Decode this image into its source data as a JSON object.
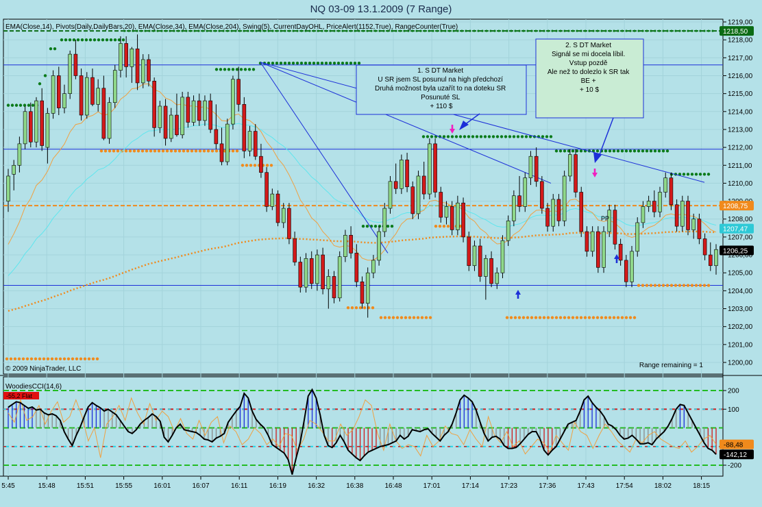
{
  "title": "NQ 03-09  13.1.2009 (7 Range)",
  "indicator_label": "EMA(Close,14), Pivots(Daily,DailyBars,20), EMA(Close,34), EMA(Close,204), Swing(5), CurrentDayOHL, PriceAlert(1152,True), RangeCounter(True)",
  "copyright": "© 2009 NinjaTrader, LLC",
  "range_remaining": "Range remaining = 1",
  "pp_label": "PP",
  "annotations": [
    {
      "id": "note1",
      "lines": [
        "1. S DT Market",
        "U SR jsem SL posunul na high předchozí",
        "Druhá možnost byla uzařít to na doteku SR",
        "Posunuté SL",
        "+ 110 $"
      ]
    },
    {
      "id": "note2",
      "lines": [
        "2. S DT Market",
        "Signál se mi docela líbil.",
        "Vstup pozdě",
        "Ale než to dolezlo k SR tak",
        "BE +",
        "+ 10 $"
      ]
    }
  ],
  "price_badges": [
    {
      "label": "1218,50",
      "value": 1218.5,
      "color": "#0b6b14"
    },
    {
      "label": "1208,75",
      "value": 1208.75,
      "color": "#f08a1c"
    },
    {
      "label": "1207,47",
      "value": 1207.47,
      "color": "#2ec9d6"
    },
    {
      "label": "1206,25",
      "value": 1206.25,
      "color": "#000000"
    }
  ],
  "cci_label": "WoodiesCCI(14,6)",
  "cci_flat_badge": "-55,2 Flat",
  "cci_badges": [
    {
      "label": "-88,48",
      "value": -88.48,
      "color": "#f08a1c"
    },
    {
      "label": "-142,12",
      "value": -142.12,
      "color": "#000000"
    }
  ],
  "chart_data": {
    "type": "candlestick",
    "price_axis": {
      "min": 1199.5,
      "max": 1219.25,
      "ticks": [
        "1219,00",
        "1218,00",
        "1217,00",
        "1216,00",
        "1215,00",
        "1214,00",
        "1213,00",
        "1212,00",
        "1211,00",
        "1210,00",
        "1209,00",
        "1208,00",
        "1207,00",
        "1206,00",
        "1205,00",
        "1204,00",
        "1203,00",
        "1202,00",
        "1201,00",
        "1200,00"
      ]
    },
    "cci_axis": {
      "min": -250,
      "max": 250,
      "ticks": [
        200,
        100,
        -200
      ]
    },
    "time_labels": [
      "5:45",
      "15:48",
      "15:51",
      "15:55",
      "16:01",
      "16:07",
      "16:11",
      "16:19",
      "16:32",
      "16:38",
      "16:48",
      "17:01",
      "17:14",
      "17:23",
      "17:36",
      "17:43",
      "17:54",
      "18:02",
      "18:15"
    ],
    "horizontal_lines": [
      {
        "value": 1216.6,
        "color": "#1c2fd8"
      },
      {
        "value": 1211.9,
        "color": "#1c2fd8"
      },
      {
        "value": 1204.3,
        "color": "#1c2fd8"
      },
      {
        "value": 1208.75,
        "color": "#f08a1c",
        "dashed": true
      },
      {
        "value": 1218.5,
        "color": "#0b6b14",
        "dashed": true
      }
    ],
    "candles": [
      {
        "o": 1209.0,
        "h": 1210.8,
        "l": 1208.4,
        "c": 1210.4
      },
      {
        "o": 1210.5,
        "h": 1211.3,
        "l": 1209.6,
        "c": 1211.0
      },
      {
        "o": 1211.0,
        "h": 1212.6,
        "l": 1210.6,
        "c": 1212.2
      },
      {
        "o": 1212.2,
        "h": 1214.3,
        "l": 1211.9,
        "c": 1214.0
      },
      {
        "o": 1214.0,
        "h": 1214.5,
        "l": 1212.0,
        "c": 1212.3
      },
      {
        "o": 1212.3,
        "h": 1214.8,
        "l": 1212.0,
        "c": 1214.6
      },
      {
        "o": 1214.6,
        "h": 1215.3,
        "l": 1211.8,
        "c": 1212.1
      },
      {
        "o": 1212.0,
        "h": 1214.2,
        "l": 1211.1,
        "c": 1213.9
      },
      {
        "o": 1213.9,
        "h": 1216.3,
        "l": 1213.6,
        "c": 1216.0
      },
      {
        "o": 1216.0,
        "h": 1216.5,
        "l": 1213.8,
        "c": 1214.2
      },
      {
        "o": 1214.2,
        "h": 1215.5,
        "l": 1213.9,
        "c": 1215.0
      },
      {
        "o": 1215.0,
        "h": 1217.4,
        "l": 1214.7,
        "c": 1217.2
      },
      {
        "o": 1217.2,
        "h": 1218.0,
        "l": 1215.8,
        "c": 1216.0
      },
      {
        "o": 1216.0,
        "h": 1216.4,
        "l": 1213.5,
        "c": 1213.8
      },
      {
        "o": 1213.8,
        "h": 1216.2,
        "l": 1213.6,
        "c": 1215.9
      },
      {
        "o": 1215.9,
        "h": 1216.4,
        "l": 1214.3,
        "c": 1214.4
      },
      {
        "o": 1214.4,
        "h": 1215.8,
        "l": 1214.0,
        "c": 1215.3
      },
      {
        "o": 1215.3,
        "h": 1216.0,
        "l": 1212.4,
        "c": 1212.5
      },
      {
        "o": 1212.5,
        "h": 1214.8,
        "l": 1212.2,
        "c": 1214.5
      },
      {
        "o": 1214.5,
        "h": 1216.6,
        "l": 1214.2,
        "c": 1216.3
      },
      {
        "o": 1216.3,
        "h": 1218.2,
        "l": 1215.9,
        "c": 1217.8
      },
      {
        "o": 1217.8,
        "h": 1218.2,
        "l": 1215.9,
        "c": 1216.5
      },
      {
        "o": 1216.5,
        "h": 1217.6,
        "l": 1215.6,
        "c": 1217.5
      },
      {
        "o": 1217.5,
        "h": 1218.3,
        "l": 1215.2,
        "c": 1215.6
      },
      {
        "o": 1215.6,
        "h": 1217.2,
        "l": 1215.3,
        "c": 1216.9
      },
      {
        "o": 1216.9,
        "h": 1217.2,
        "l": 1215.4,
        "c": 1215.7
      },
      {
        "o": 1215.7,
        "h": 1215.9,
        "l": 1212.6,
        "c": 1213.1
      },
      {
        "o": 1213.1,
        "h": 1214.6,
        "l": 1212.8,
        "c": 1214.3
      },
      {
        "o": 1214.3,
        "h": 1214.7,
        "l": 1212.1,
        "c": 1212.5
      },
      {
        "o": 1212.5,
        "h": 1214.2,
        "l": 1212.3,
        "c": 1213.8
      },
      {
        "o": 1213.8,
        "h": 1215.0,
        "l": 1212.6,
        "c": 1212.7
      },
      {
        "o": 1212.7,
        "h": 1215.1,
        "l": 1212.5,
        "c": 1214.8
      },
      {
        "o": 1214.8,
        "h": 1215.1,
        "l": 1213.1,
        "c": 1213.4
      },
      {
        "o": 1213.4,
        "h": 1214.9,
        "l": 1213.2,
        "c": 1214.6
      },
      {
        "o": 1214.6,
        "h": 1215.0,
        "l": 1213.2,
        "c": 1213.5
      },
      {
        "o": 1213.5,
        "h": 1214.9,
        "l": 1213.2,
        "c": 1214.6
      },
      {
        "o": 1214.6,
        "h": 1215.0,
        "l": 1212.8,
        "c": 1213.0
      },
      {
        "o": 1213.0,
        "h": 1214.4,
        "l": 1211.9,
        "c": 1212.2
      },
      {
        "o": 1212.2,
        "h": 1213.1,
        "l": 1211.0,
        "c": 1211.2
      },
      {
        "o": 1211.2,
        "h": 1213.6,
        "l": 1211.0,
        "c": 1213.3
      },
      {
        "o": 1213.3,
        "h": 1216.0,
        "l": 1213.0,
        "c": 1215.8
      },
      {
        "o": 1215.8,
        "h": 1216.5,
        "l": 1214.0,
        "c": 1214.4
      },
      {
        "o": 1214.4,
        "h": 1214.8,
        "l": 1211.4,
        "c": 1211.8
      },
      {
        "o": 1211.8,
        "h": 1213.2,
        "l": 1211.5,
        "c": 1212.9
      },
      {
        "o": 1212.9,
        "h": 1213.3,
        "l": 1211.3,
        "c": 1211.5
      },
      {
        "o": 1211.5,
        "h": 1212.2,
        "l": 1210.3,
        "c": 1210.6
      },
      {
        "o": 1210.6,
        "h": 1210.9,
        "l": 1208.4,
        "c": 1208.7
      },
      {
        "o": 1208.7,
        "h": 1209.7,
        "l": 1208.5,
        "c": 1209.4
      },
      {
        "o": 1209.4,
        "h": 1209.6,
        "l": 1207.6,
        "c": 1207.8
      },
      {
        "o": 1207.8,
        "h": 1208.9,
        "l": 1207.5,
        "c": 1208.6
      },
      {
        "o": 1208.6,
        "h": 1208.9,
        "l": 1206.6,
        "c": 1206.9
      },
      {
        "o": 1206.9,
        "h": 1207.3,
        "l": 1205.4,
        "c": 1205.6
      },
      {
        "o": 1205.6,
        "h": 1205.9,
        "l": 1203.9,
        "c": 1204.2
      },
      {
        "o": 1204.2,
        "h": 1206.1,
        "l": 1203.9,
        "c": 1205.8
      },
      {
        "o": 1205.8,
        "h": 1206.2,
        "l": 1204.1,
        "c": 1204.4
      },
      {
        "o": 1204.4,
        "h": 1206.3,
        "l": 1204.0,
        "c": 1206.0
      },
      {
        "o": 1206.0,
        "h": 1206.4,
        "l": 1203.8,
        "c": 1204.1
      },
      {
        "o": 1204.1,
        "h": 1205.2,
        "l": 1203.0,
        "c": 1204.8
      },
      {
        "o": 1204.8,
        "h": 1205.1,
        "l": 1203.3,
        "c": 1203.6
      },
      {
        "o": 1203.6,
        "h": 1206.2,
        "l": 1203.4,
        "c": 1205.9
      },
      {
        "o": 1205.9,
        "h": 1207.4,
        "l": 1205.6,
        "c": 1207.1
      },
      {
        "o": 1207.1,
        "h": 1207.6,
        "l": 1205.8,
        "c": 1206.1
      },
      {
        "o": 1206.1,
        "h": 1206.6,
        "l": 1204.2,
        "c": 1204.5
      },
      {
        "o": 1204.5,
        "h": 1204.8,
        "l": 1203.0,
        "c": 1203.3
      },
      {
        "o": 1203.3,
        "h": 1205.3,
        "l": 1202.5,
        "c": 1205.0
      },
      {
        "o": 1205.0,
        "h": 1206.0,
        "l": 1204.7,
        "c": 1205.7
      },
      {
        "o": 1205.7,
        "h": 1207.6,
        "l": 1205.4,
        "c": 1207.3
      },
      {
        "o": 1207.3,
        "h": 1208.9,
        "l": 1207.0,
        "c": 1208.6
      },
      {
        "o": 1208.6,
        "h": 1210.4,
        "l": 1208.3,
        "c": 1210.1
      },
      {
        "o": 1210.1,
        "h": 1211.1,
        "l": 1209.4,
        "c": 1209.7
      },
      {
        "o": 1209.7,
        "h": 1211.6,
        "l": 1209.4,
        "c": 1211.3
      },
      {
        "o": 1211.3,
        "h": 1211.7,
        "l": 1209.5,
        "c": 1209.8
      },
      {
        "o": 1209.8,
        "h": 1210.1,
        "l": 1208.0,
        "c": 1208.3
      },
      {
        "o": 1208.3,
        "h": 1210.7,
        "l": 1208.0,
        "c": 1210.4
      },
      {
        "o": 1210.4,
        "h": 1211.2,
        "l": 1209.1,
        "c": 1209.4
      },
      {
        "o": 1209.4,
        "h": 1212.5,
        "l": 1209.1,
        "c": 1212.2
      },
      {
        "o": 1212.2,
        "h": 1212.5,
        "l": 1209.2,
        "c": 1209.5
      },
      {
        "o": 1209.5,
        "h": 1209.8,
        "l": 1207.8,
        "c": 1208.1
      },
      {
        "o": 1208.1,
        "h": 1209.0,
        "l": 1207.7,
        "c": 1208.7
      },
      {
        "o": 1208.7,
        "h": 1209.0,
        "l": 1207.1,
        "c": 1207.4
      },
      {
        "o": 1207.4,
        "h": 1209.3,
        "l": 1207.1,
        "c": 1208.9
      },
      {
        "o": 1208.9,
        "h": 1209.2,
        "l": 1206.7,
        "c": 1207.0
      },
      {
        "o": 1207.0,
        "h": 1207.3,
        "l": 1205.1,
        "c": 1205.4
      },
      {
        "o": 1205.4,
        "h": 1206.8,
        "l": 1205.1,
        "c": 1206.5
      },
      {
        "o": 1206.5,
        "h": 1206.9,
        "l": 1204.5,
        "c": 1204.8
      },
      {
        "o": 1204.8,
        "h": 1206.0,
        "l": 1203.5,
        "c": 1205.8
      },
      {
        "o": 1205.8,
        "h": 1206.2,
        "l": 1204.2,
        "c": 1204.4
      },
      {
        "o": 1204.4,
        "h": 1205.3,
        "l": 1204.1,
        "c": 1205.0
      },
      {
        "o": 1205.0,
        "h": 1207.1,
        "l": 1204.7,
        "c": 1206.8
      },
      {
        "o": 1206.8,
        "h": 1208.2,
        "l": 1206.5,
        "c": 1207.9
      },
      {
        "o": 1207.9,
        "h": 1209.6,
        "l": 1207.6,
        "c": 1209.3
      },
      {
        "o": 1209.3,
        "h": 1210.4,
        "l": 1208.4,
        "c": 1208.7
      },
      {
        "o": 1208.7,
        "h": 1210.6,
        "l": 1208.4,
        "c": 1210.3
      },
      {
        "o": 1210.3,
        "h": 1211.8,
        "l": 1209.9,
        "c": 1211.5
      },
      {
        "o": 1211.5,
        "h": 1212.0,
        "l": 1209.8,
        "c": 1210.1
      },
      {
        "o": 1210.1,
        "h": 1210.4,
        "l": 1208.3,
        "c": 1208.6
      },
      {
        "o": 1208.6,
        "h": 1208.9,
        "l": 1207.3,
        "c": 1207.6
      },
      {
        "o": 1207.6,
        "h": 1209.4,
        "l": 1207.3,
        "c": 1209.1
      },
      {
        "o": 1209.1,
        "h": 1209.4,
        "l": 1207.6,
        "c": 1207.9
      },
      {
        "o": 1207.9,
        "h": 1210.7,
        "l": 1207.6,
        "c": 1210.4
      },
      {
        "o": 1210.4,
        "h": 1211.9,
        "l": 1210.1,
        "c": 1211.6
      },
      {
        "o": 1211.6,
        "h": 1211.9,
        "l": 1209.2,
        "c": 1209.5
      },
      {
        "o": 1209.5,
        "h": 1209.8,
        "l": 1207.0,
        "c": 1207.3
      },
      {
        "o": 1207.3,
        "h": 1207.6,
        "l": 1205.9,
        "c": 1206.2
      },
      {
        "o": 1206.2,
        "h": 1207.6,
        "l": 1205.9,
        "c": 1207.3
      },
      {
        "o": 1207.3,
        "h": 1207.6,
        "l": 1205.0,
        "c": 1205.3
      },
      {
        "o": 1205.3,
        "h": 1207.6,
        "l": 1205.0,
        "c": 1207.3
      },
      {
        "o": 1207.3,
        "h": 1208.8,
        "l": 1207.0,
        "c": 1208.5
      },
      {
        "o": 1208.5,
        "h": 1208.8,
        "l": 1206.3,
        "c": 1206.6
      },
      {
        "o": 1206.6,
        "h": 1206.9,
        "l": 1205.4,
        "c": 1205.7
      },
      {
        "o": 1205.7,
        "h": 1206.0,
        "l": 1204.2,
        "c": 1204.5
      },
      {
        "o": 1204.5,
        "h": 1206.5,
        "l": 1204.2,
        "c": 1206.2
      },
      {
        "o": 1206.2,
        "h": 1208.1,
        "l": 1205.9,
        "c": 1207.8
      },
      {
        "o": 1207.8,
        "h": 1209.0,
        "l": 1207.5,
        "c": 1208.7
      },
      {
        "o": 1208.7,
        "h": 1209.3,
        "l": 1208.4,
        "c": 1209.0
      },
      {
        "o": 1209.0,
        "h": 1209.6,
        "l": 1208.1,
        "c": 1208.4
      },
      {
        "o": 1208.4,
        "h": 1209.8,
        "l": 1208.1,
        "c": 1209.5
      },
      {
        "o": 1209.5,
        "h": 1210.6,
        "l": 1209.2,
        "c": 1210.3
      },
      {
        "o": 1210.3,
        "h": 1210.6,
        "l": 1208.5,
        "c": 1208.8
      },
      {
        "o": 1208.8,
        "h": 1209.1,
        "l": 1207.3,
        "c": 1207.6
      },
      {
        "o": 1207.6,
        "h": 1209.3,
        "l": 1207.3,
        "c": 1209.0
      },
      {
        "o": 1209.0,
        "h": 1209.3,
        "l": 1207.1,
        "c": 1207.4
      },
      {
        "o": 1207.4,
        "h": 1208.3,
        "l": 1206.9,
        "c": 1208.0
      },
      {
        "o": 1208.0,
        "h": 1208.3,
        "l": 1206.6,
        "c": 1206.9
      },
      {
        "o": 1206.9,
        "h": 1207.2,
        "l": 1205.7,
        "c": 1206.0
      },
      {
        "o": 1206.0,
        "h": 1206.7,
        "l": 1205.1,
        "c": 1205.4
      },
      {
        "o": 1205.4,
        "h": 1206.6,
        "l": 1204.9,
        "c": 1206.3
      }
    ],
    "cci": [
      110,
      125,
      140,
      135,
      120,
      105,
      112,
      95,
      100,
      80,
      70,
      75,
      65,
      40,
      -20,
      -60,
      -95,
      -40,
      5,
      60,
      112,
      135,
      120,
      108,
      90,
      100,
      85,
      70,
      40,
      10,
      -20,
      -30,
      -10,
      20,
      40,
      55,
      75,
      60,
      35,
      -50,
      -75,
      -40,
      0,
      20,
      -10,
      -15,
      -20,
      -25,
      -40,
      -60,
      -65,
      -75,
      -55,
      -45,
      -30,
      30,
      60,
      90,
      115,
      185,
      160,
      90,
      45,
      20,
      0,
      -40,
      -90,
      -105,
      -120,
      -135,
      -170,
      -250,
      -160,
      -80,
      40,
      170,
      205,
      160,
      70,
      -40,
      -95,
      -105,
      -80,
      -40,
      -75,
      -120,
      -140,
      -160,
      -175,
      -150,
      -130,
      -120,
      -110,
      -100,
      -95,
      -90,
      -80,
      -70,
      -40,
      -60,
      -45,
      -10,
      -15,
      -20,
      -10,
      -5,
      -30,
      -50,
      -70,
      -40,
      -20,
      20,
      80,
      150,
      175,
      160,
      140,
      95,
      30,
      -30,
      -70,
      -50,
      -45,
      -60,
      -95,
      -110,
      -110,
      -105,
      -85,
      -60,
      -35,
      -20,
      -20,
      -60,
      -120,
      -145,
      -120,
      -100,
      -60,
      -20,
      20,
      30,
      40,
      90,
      150,
      170,
      135,
      110,
      90,
      60,
      20,
      10,
      -10,
      -40,
      -60,
      -55,
      -40,
      -60,
      -85,
      -85,
      -80,
      -90,
      -60,
      -40,
      -20,
      10,
      50,
      100,
      125,
      120,
      80,
      40,
      0,
      -40,
      -80,
      -110,
      -120,
      -142
    ],
    "cci_turbo": [
      80,
      30,
      150,
      40,
      60,
      120,
      20,
      90,
      140,
      30,
      60,
      150,
      60,
      -70,
      0,
      -160,
      20,
      60,
      120,
      40,
      160,
      80,
      20,
      130,
      40,
      90,
      60,
      -20,
      50,
      -30,
      -60,
      40,
      -40,
      30,
      60,
      -80,
      10,
      -20,
      -90,
      -60,
      0,
      -30,
      -90,
      -60,
      -100,
      -30,
      -40,
      -120,
      -60,
      40,
      20,
      -20,
      -70,
      -70,
      20,
      -40,
      -10,
      60,
      150,
      120,
      -30,
      -120,
      20,
      -70,
      -110,
      -90,
      -100,
      -150,
      -40,
      -100,
      -70,
      10,
      -30,
      -40,
      -90,
      -10,
      -60,
      -100,
      60,
      -40,
      -80,
      -20,
      -100,
      -70,
      -140,
      -100,
      -60,
      -80,
      -130,
      -40,
      -80,
      -120,
      30,
      -20,
      -40,
      -110,
      -40,
      20,
      -20,
      -70,
      -100,
      -130,
      -60,
      -80,
      -40,
      -20,
      -60,
      -80,
      -100,
      -110,
      -70,
      -130,
      -100,
      -60,
      -40,
      -88
    ]
  }
}
